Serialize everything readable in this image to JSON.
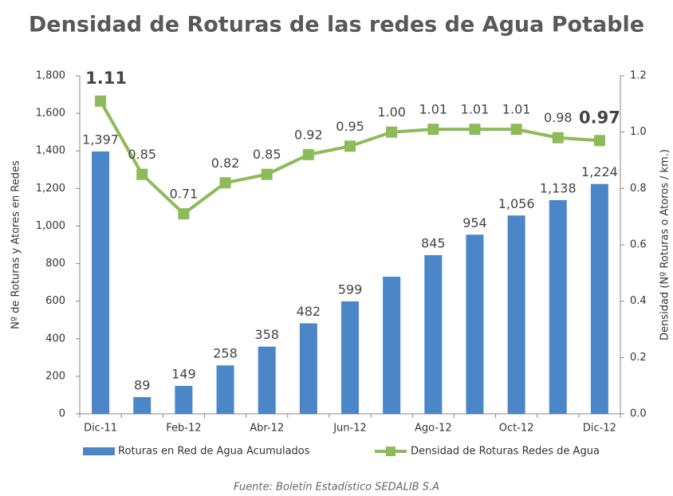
{
  "chart_data": {
    "type": "bar_line",
    "title": "Densidad de Roturas de las redes de Agua Potable",
    "y_label": "Nº de Roturas y Atores en Redes",
    "y2_label": "Densidad (Nº Roturas o Atoros / km.)",
    "source": "Fuente: Boletín Estadístico SEDALIB S.A",
    "categories": [
      "Dic-11",
      null,
      "Feb-12",
      null,
      "Abr-12",
      null,
      "Jun-12",
      null,
      "Ago-12",
      null,
      "Oct-12",
      null,
      "Dic-12"
    ],
    "series": [
      {
        "name": "Roturas en Red de Agua Acumulados",
        "type": "bar",
        "color": "#4a86c8",
        "values": [
          1397,
          89,
          149,
          258,
          358,
          482,
          599,
          730,
          845,
          954,
          1056,
          1138,
          1224
        ],
        "value_labels": [
          "1,397",
          "89",
          "149",
          "258",
          "358",
          "482",
          "599",
          null,
          "845",
          "954",
          "1,056",
          "1,138",
          "1,224"
        ]
      },
      {
        "name": "Densidad de Roturas Redes de Agua",
        "type": "line",
        "axis": "y2",
        "color": "#8dbb58",
        "values": [
          1.11,
          0.85,
          0.71,
          0.82,
          0.85,
          0.92,
          0.95,
          1.0,
          1.01,
          1.01,
          1.01,
          0.98,
          0.97
        ],
        "value_labels": [
          "1.11",
          "0.85",
          "0.71",
          "0.82",
          "0.85",
          "0.92",
          "0.95",
          "1.00",
          "1.01",
          "1.01",
          "1.01",
          "0.98",
          "0.97"
        ]
      }
    ],
    "ylim": [
      0,
      1800
    ],
    "yticks": [
      0,
      200,
      400,
      600,
      800,
      {
        "value": 1000,
        "label": "1,000"
      },
      {
        "value": 1200,
        "label": "1,200"
      },
      {
        "value": 1400,
        "label": "1,400"
      },
      {
        "value": 1600,
        "label": "1,600"
      },
      {
        "value": 1800,
        "label": "1,800"
      }
    ],
    "y2lim": [
      0,
      1.2
    ],
    "y2ticks": [
      {
        "value": 0,
        "label": "0.0"
      },
      0.2,
      0.4,
      0.6,
      0.8,
      {
        "value": 1,
        "label": "1.0"
      },
      1.2
    ],
    "legend": "bottom"
  }
}
